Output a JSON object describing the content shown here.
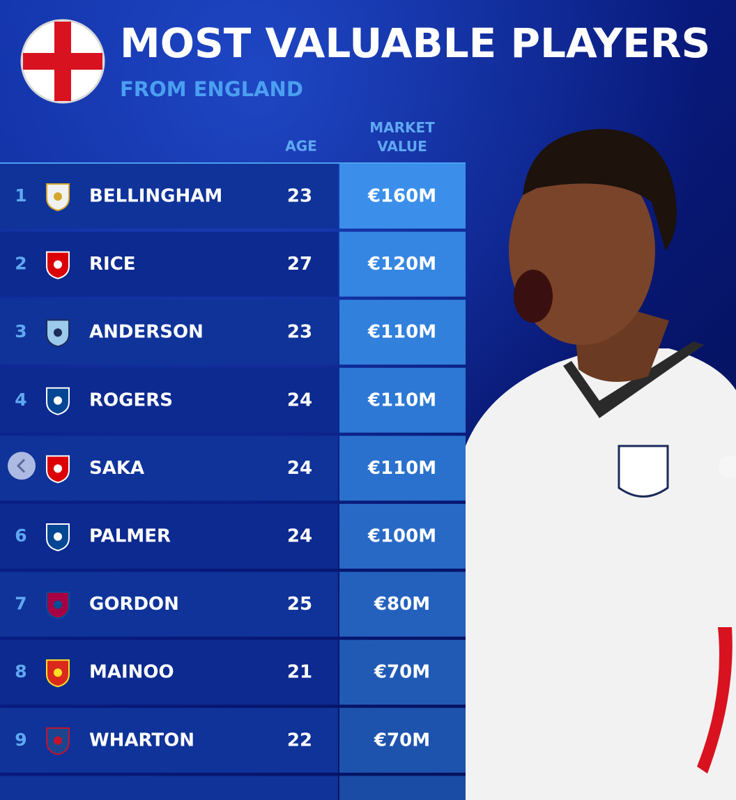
{
  "header": {
    "title": "MOST VALUABLE PLAYERS",
    "subtitle": "FROM ENGLAND"
  },
  "table": {
    "columns": [
      "AGE",
      "MARKET VALUE"
    ],
    "rows": [
      {
        "rank": "1",
        "name": "BELLINGHAM",
        "age": "23",
        "value": "€160M"
      },
      {
        "rank": "2",
        "name": "RICE",
        "age": "27",
        "value": "€120M"
      },
      {
        "rank": "3",
        "name": "ANDERSON",
        "age": "23",
        "value": "€110M"
      },
      {
        "rank": "4",
        "name": "ROGERS",
        "age": "24",
        "value": "€110M"
      },
      {
        "rank": null,
        "name": "SAKA",
        "age": "24",
        "value": "€110M"
      },
      {
        "rank": "6",
        "name": "PALMER",
        "age": "24",
        "value": "€100M"
      },
      {
        "rank": "7",
        "name": "GORDON",
        "age": "25",
        "value": "€80M"
      },
      {
        "rank": "8",
        "name": "MAINOO",
        "age": "21",
        "value": "€70M"
      },
      {
        "rank": "9",
        "name": "WHARTON",
        "age": "22",
        "value": "€70M"
      }
    ]
  }
}
